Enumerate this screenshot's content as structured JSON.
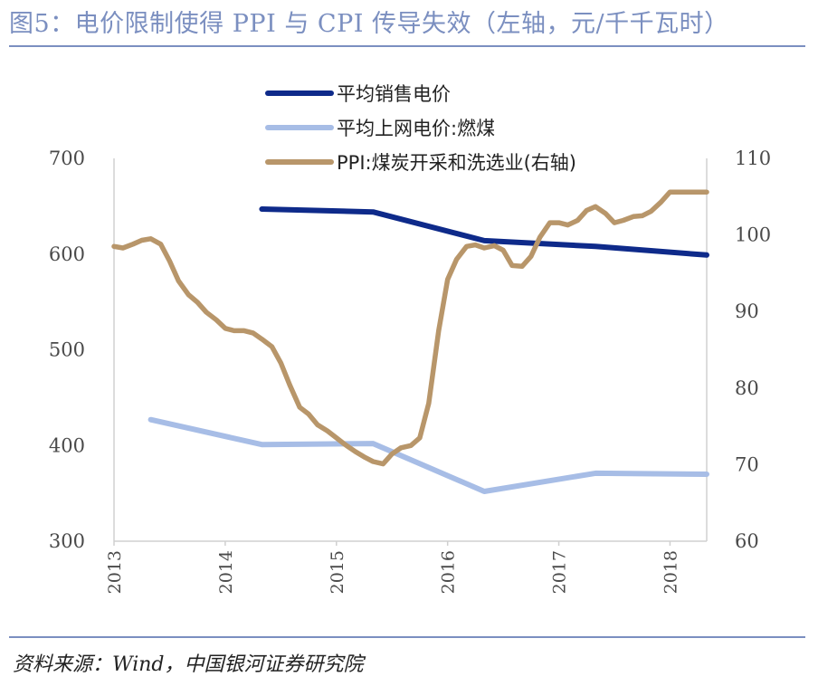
{
  "figure": {
    "title": "图5：电价限制使得 PPI 与 CPI 传导失效（左轴，元/千千瓦时）",
    "source": "资料来源：Wind，中国银河证券研究院"
  },
  "chart_data": {
    "type": "line",
    "x_ticks": [
      "2013",
      "2014",
      "2015",
      "2016",
      "2017",
      "2018"
    ],
    "x_range": [
      2013.0,
      2018.33
    ],
    "y_left": {
      "ticks": [
        "300",
        "400",
        "500",
        "600",
        "700"
      ],
      "range": [
        300,
        700
      ]
    },
    "y_right": {
      "ticks": [
        "60",
        "70",
        "80",
        "90",
        "100",
        "110"
      ],
      "range": [
        60,
        110
      ]
    },
    "series": [
      {
        "name": "平均销售电价",
        "axis": "left",
        "color": "#0e2a8a",
        "x": [
          2014.33,
          2015.33,
          2016.33,
          2017.33,
          2018.33
        ],
        "y": [
          647,
          644,
          614,
          608,
          599
        ]
      },
      {
        "name": "平均上网电价:燃煤",
        "axis": "left",
        "color": "#a7bde6",
        "x": [
          2013.33,
          2014.33,
          2015.33,
          2016.33,
          2017.33,
          2018.33
        ],
        "y": [
          427,
          401,
          402,
          352,
          371,
          370
        ]
      },
      {
        "name": "PPI:煤炭开采和洗选业(右轴)",
        "axis": "right",
        "color": "#b8966a",
        "x": [
          2013.0,
          2013.08,
          2013.17,
          2013.25,
          2013.33,
          2013.42,
          2013.5,
          2013.58,
          2013.67,
          2013.75,
          2013.83,
          2013.92,
          2014.0,
          2014.08,
          2014.17,
          2014.25,
          2014.33,
          2014.42,
          2014.5,
          2014.58,
          2014.67,
          2014.75,
          2014.83,
          2014.92,
          2015.0,
          2015.08,
          2015.17,
          2015.25,
          2015.33,
          2015.42,
          2015.5,
          2015.58,
          2015.67,
          2015.75,
          2015.83,
          2015.92,
          2016.0,
          2016.08,
          2016.17,
          2016.25,
          2016.33,
          2016.42,
          2016.5,
          2016.58,
          2016.67,
          2016.75,
          2016.83,
          2016.92,
          2017.0,
          2017.08,
          2017.17,
          2017.25,
          2017.33,
          2017.42,
          2017.5,
          2017.58,
          2017.67,
          2017.75,
          2017.83,
          2017.92,
          2018.0,
          2018.08,
          2018.17,
          2018.25,
          2018.33
        ],
        "y": [
          98.5,
          98.3,
          98.8,
          99.3,
          99.5,
          98.8,
          96.6,
          94.0,
          92.2,
          91.2,
          89.9,
          88.9,
          87.8,
          87.5,
          87.5,
          87.2,
          86.4,
          85.4,
          83.3,
          80.4,
          77.5,
          76.6,
          75.2,
          74.4,
          73.5,
          72.6,
          71.7,
          71.0,
          70.4,
          70.1,
          71.4,
          72.2,
          72.5,
          73.5,
          78.0,
          87.5,
          94.2,
          96.8,
          98.5,
          98.7,
          98.3,
          98.6,
          98.0,
          96.0,
          95.9,
          97.2,
          99.7,
          101.6,
          101.6,
          101.3,
          101.9,
          103.2,
          103.7,
          102.8,
          101.6,
          101.9,
          102.4,
          102.5,
          103.1,
          104.3,
          105.6,
          105.6,
          105.6,
          105.6,
          105.6
        ]
      }
    ]
  }
}
